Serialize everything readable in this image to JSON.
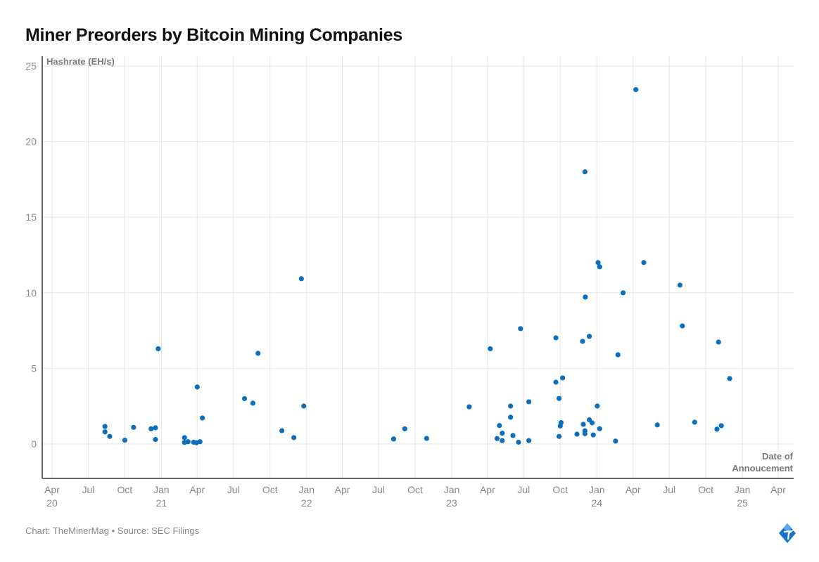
{
  "chart_data": {
    "type": "scatter",
    "title": "Miner Preorders by Bitcoin Mining Companies",
    "ylabel": "Hashrate (EH/s)",
    "xlabel_lines": [
      "Date of",
      "Annoucement"
    ],
    "ylim": [
      -2.2,
      25.6
    ],
    "xlim": [
      "2020-03-06",
      "2025-05-15"
    ],
    "grid": true,
    "yticks": [
      0,
      5,
      10,
      15,
      20,
      25
    ],
    "xticks": [
      {
        "date": "2020-04-01",
        "label": "Apr",
        "year": "20"
      },
      {
        "date": "2020-07-01",
        "label": "Jul",
        "year": ""
      },
      {
        "date": "2020-10-01",
        "label": "Oct",
        "year": ""
      },
      {
        "date": "2021-01-01",
        "label": "Jan",
        "year": "21"
      },
      {
        "date": "2021-04-01",
        "label": "Apr",
        "year": ""
      },
      {
        "date": "2021-07-01",
        "label": "Jul",
        "year": ""
      },
      {
        "date": "2021-10-01",
        "label": "Oct",
        "year": ""
      },
      {
        "date": "2022-01-01",
        "label": "Jan",
        "year": "22"
      },
      {
        "date": "2022-04-01",
        "label": "Apr",
        "year": ""
      },
      {
        "date": "2022-07-01",
        "label": "Jul",
        "year": ""
      },
      {
        "date": "2022-10-01",
        "label": "Oct",
        "year": ""
      },
      {
        "date": "2023-01-01",
        "label": "Jan",
        "year": "23"
      },
      {
        "date": "2023-04-01",
        "label": "Apr",
        "year": ""
      },
      {
        "date": "2023-07-01",
        "label": "Jul",
        "year": ""
      },
      {
        "date": "2023-10-01",
        "label": "Oct",
        "year": ""
      },
      {
        "date": "2024-01-01",
        "label": "Jan",
        "year": "24"
      },
      {
        "date": "2024-04-01",
        "label": "Apr",
        "year": ""
      },
      {
        "date": "2024-07-01",
        "label": "Jul",
        "year": ""
      },
      {
        "date": "2024-10-01",
        "label": "Oct",
        "year": ""
      },
      {
        "date": "2025-01-01",
        "label": "Jan",
        "year": "25"
      },
      {
        "date": "2025-04-01",
        "label": "Apr",
        "year": ""
      }
    ],
    "color": "#0b6fbd",
    "points": [
      [
        "2020-08-12",
        1.16
      ],
      [
        "2020-08-12",
        0.8
      ],
      [
        "2020-08-24",
        0.5
      ],
      [
        "2020-10-01",
        0.25
      ],
      [
        "2020-10-23",
        1.1
      ],
      [
        "2020-12-06",
        1.0
      ],
      [
        "2020-12-17",
        1.07
      ],
      [
        "2020-12-17",
        0.3
      ],
      [
        "2020-12-24",
        6.3
      ],
      [
        "2021-02-28",
        0.42
      ],
      [
        "2021-02-28",
        0.1
      ],
      [
        "2021-03-09",
        0.15
      ],
      [
        "2021-03-23",
        0.12
      ],
      [
        "2021-03-30",
        0.08
      ],
      [
        "2021-04-08",
        0.15
      ],
      [
        "2021-04-01",
        3.77
      ],
      [
        "2021-04-14",
        1.72
      ],
      [
        "2021-07-29",
        3.0
      ],
      [
        "2021-08-19",
        2.7
      ],
      [
        "2021-09-01",
        6.0
      ],
      [
        "2021-10-31",
        0.88
      ],
      [
        "2021-11-30",
        0.42
      ],
      [
        "2021-12-19",
        10.93
      ],
      [
        "2021-12-25",
        2.51
      ],
      [
        "2022-08-08",
        0.33
      ],
      [
        "2022-09-05",
        1.0
      ],
      [
        "2022-10-30",
        0.37
      ],
      [
        "2023-02-14",
        2.46
      ],
      [
        "2023-04-08",
        6.3
      ],
      [
        "2023-04-25",
        0.36
      ],
      [
        "2023-05-01",
        1.22
      ],
      [
        "2023-05-08",
        0.71
      ],
      [
        "2023-05-08",
        0.22
      ],
      [
        "2023-05-29",
        2.51
      ],
      [
        "2023-05-29",
        1.77
      ],
      [
        "2023-06-04",
        0.56
      ],
      [
        "2023-06-18",
        0.12
      ],
      [
        "2023-06-23",
        7.63
      ],
      [
        "2023-07-14",
        2.79
      ],
      [
        "2023-07-14",
        0.22
      ],
      [
        "2023-09-20",
        7.02
      ],
      [
        "2023-09-20",
        4.09
      ],
      [
        "2023-09-28",
        3.01
      ],
      [
        "2023-09-28",
        0.5
      ],
      [
        "2023-10-01",
        1.19
      ],
      [
        "2023-10-03",
        1.41
      ],
      [
        "2023-10-07",
        4.37
      ],
      [
        "2023-11-12",
        0.65
      ],
      [
        "2023-11-26",
        6.79
      ],
      [
        "2023-11-28",
        1.3
      ],
      [
        "2023-12-02",
        18.0
      ],
      [
        "2023-12-02",
        0.87
      ],
      [
        "2023-12-02",
        0.68
      ],
      [
        "2023-12-03",
        9.72
      ],
      [
        "2023-12-13",
        7.12
      ],
      [
        "2023-12-13",
        1.6
      ],
      [
        "2023-12-20",
        1.4
      ],
      [
        "2023-12-23",
        0.6
      ],
      [
        "2024-01-02",
        2.51
      ],
      [
        "2024-01-04",
        12.0
      ],
      [
        "2024-01-08",
        11.72
      ],
      [
        "2024-01-08",
        1.01
      ],
      [
        "2024-02-17",
        0.19
      ],
      [
        "2024-02-23",
        5.9
      ],
      [
        "2024-03-07",
        10.0
      ],
      [
        "2024-04-08",
        23.44
      ],
      [
        "2024-04-28",
        12.0
      ],
      [
        "2024-06-01",
        1.26
      ],
      [
        "2024-07-28",
        10.51
      ],
      [
        "2024-08-03",
        7.81
      ],
      [
        "2024-09-03",
        1.44
      ],
      [
        "2024-10-29",
        0.98
      ],
      [
        "2024-11-02",
        6.74
      ],
      [
        "2024-11-09",
        1.21
      ],
      [
        "2024-11-30",
        4.33
      ]
    ]
  },
  "footer": "Chart: TheMinerMag • Source: SEC Filings",
  "logo_text": "TheMinerMag"
}
